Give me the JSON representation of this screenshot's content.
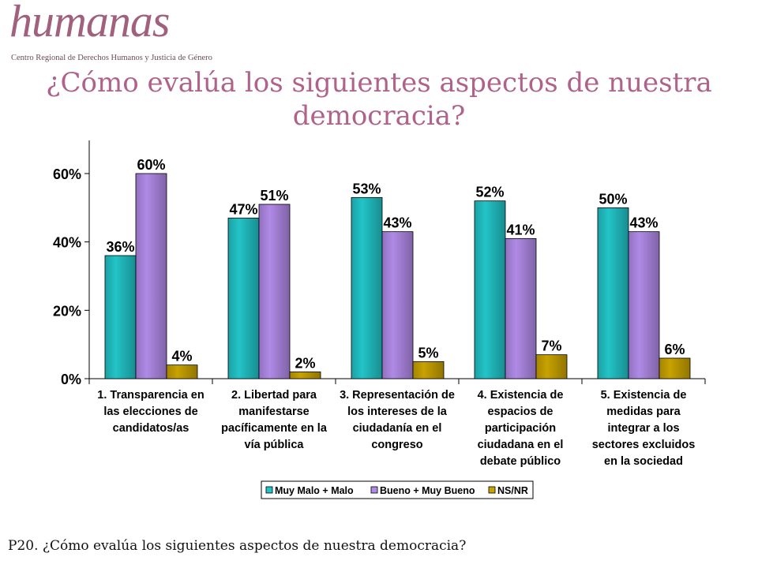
{
  "logo": {
    "wordmark": "humanas",
    "subtitle": "Centro Regional de Derechos Humanos y Justicia de Género"
  },
  "title_lines": [
    "¿Cómo evalúa los siguientes aspectos de nuestra",
    "democracia?"
  ],
  "footer": "P20. ¿Cómo evalúa los siguientes aspectos de nuestra democracia?",
  "colors": {
    "title": "#b0638a",
    "series": [
      "#22c4c8",
      "#b08ae6",
      "#c8a200"
    ]
  },
  "chart_data": {
    "type": "bar",
    "categories": [
      [
        "1. Transparencia en",
        "las elecciones de",
        "candidatos/as"
      ],
      [
        "2. Libertad para",
        "manifestarse",
        "pacíficamente en la",
        "vía pública"
      ],
      [
        "3. Representación de",
        "los intereses de la",
        "ciudadanía en el",
        "congreso"
      ],
      [
        "4. Existencia de",
        "espacios de",
        "participación",
        "ciudadana en el",
        "debate público"
      ],
      [
        "5. Existencia de",
        "medidas para",
        "integrar a los",
        "sectores excluidos",
        "en la sociedad"
      ]
    ],
    "series": [
      {
        "name": "Muy Malo + Malo",
        "values": [
          36,
          47,
          53,
          52,
          50
        ],
        "labels": [
          "36%",
          "47%",
          "53%",
          "52%",
          "50%"
        ]
      },
      {
        "name": "Bueno + Muy Bueno",
        "values": [
          60,
          51,
          43,
          41,
          43
        ],
        "labels": [
          "60%",
          "51%",
          "43%",
          "41%",
          "43%"
        ]
      },
      {
        "name": "NS/NR",
        "values": [
          4,
          2,
          5,
          7,
          6
        ],
        "labels": [
          "4%",
          "2%",
          "5%",
          "7%",
          "6%"
        ]
      }
    ],
    "ylim": [
      0,
      70
    ],
    "yticks": [
      0,
      20,
      40,
      60
    ],
    "ytick_labels": [
      "0%",
      "20%",
      "40%",
      "60%"
    ],
    "legend_position": "bottom-right",
    "grid": false
  }
}
